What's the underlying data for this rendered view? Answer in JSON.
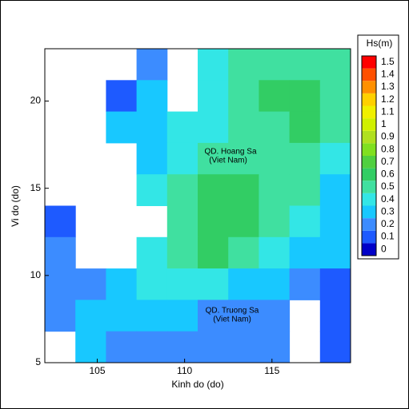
{
  "chart_data": {
    "type": "heatmap",
    "xlabel": "Kinh do (do)",
    "ylabel": "Vi do (do)",
    "xlim": [
      102,
      119.5
    ],
    "ylim": [
      5,
      23
    ],
    "xticks": [
      105,
      110,
      115
    ],
    "yticks": [
      5,
      10,
      15,
      20
    ],
    "annotations": [
      "QD. Hoang Sa",
      "(Viet Nam)",
      "QD. Truong Sa",
      "(Viet Nam)"
    ],
    "lon": [
      102.875,
      104.625,
      106.375,
      108.125,
      109.875,
      111.625,
      113.375,
      115.125,
      116.875,
      118.625
    ],
    "lat": [
      22.1,
      20.3,
      18.5,
      16.7,
      14.9,
      13.1,
      11.3,
      9.5,
      7.7,
      5.9
    ],
    "z": [
      [
        null,
        null,
        null,
        0.2,
        null,
        0.4,
        0.5,
        0.55,
        0.55,
        0.55
      ],
      [
        null,
        null,
        0.15,
        0.3,
        null,
        0.45,
        0.55,
        0.6,
        0.6,
        0.55
      ],
      [
        null,
        null,
        0.3,
        0.35,
        0.4,
        0.45,
        0.5,
        0.55,
        0.6,
        0.5
      ],
      [
        null,
        null,
        null,
        0.35,
        0.45,
        0.5,
        0.5,
        0.5,
        0.55,
        0.4
      ],
      [
        null,
        null,
        null,
        0.45,
        0.55,
        0.6,
        0.6,
        0.55,
        0.5,
        0.35
      ],
      [
        0.15,
        null,
        null,
        null,
        0.55,
        0.65,
        0.65,
        0.55,
        0.45,
        0.35
      ],
      [
        0.2,
        null,
        null,
        0.45,
        0.55,
        0.6,
        0.55,
        0.45,
        0.35,
        0.3
      ],
      [
        0.2,
        0.25,
        0.3,
        0.45,
        0.45,
        0.4,
        0.35,
        0.3,
        0.25,
        0.15
      ],
      [
        0.25,
        0.3,
        0.35,
        0.35,
        0.3,
        0.25,
        0.25,
        0.2,
        null,
        0.15
      ],
      [
        null,
        0.3,
        0.25,
        0.25,
        0.2,
        0.2,
        0.2,
        0.2,
        null,
        0.15
      ]
    ],
    "colorbar": {
      "title": "Hs(m)",
      "ticks": [
        0,
        0.1,
        0.2,
        0.3,
        0.4,
        0.5,
        0.6,
        0.7,
        0.8,
        0.9,
        1,
        1.1,
        1.2,
        1.3,
        1.4,
        1.5
      ],
      "colors": [
        "#0000c8",
        "#1e5aff",
        "#3c8cff",
        "#18c8ff",
        "#33e6e6",
        "#40e0a0",
        "#32cd64",
        "#50d040",
        "#80e020",
        "#b0e020",
        "#d0f000",
        "#f0f000",
        "#ffd000",
        "#ff9000",
        "#ff5000",
        "#ff0000"
      ]
    }
  }
}
